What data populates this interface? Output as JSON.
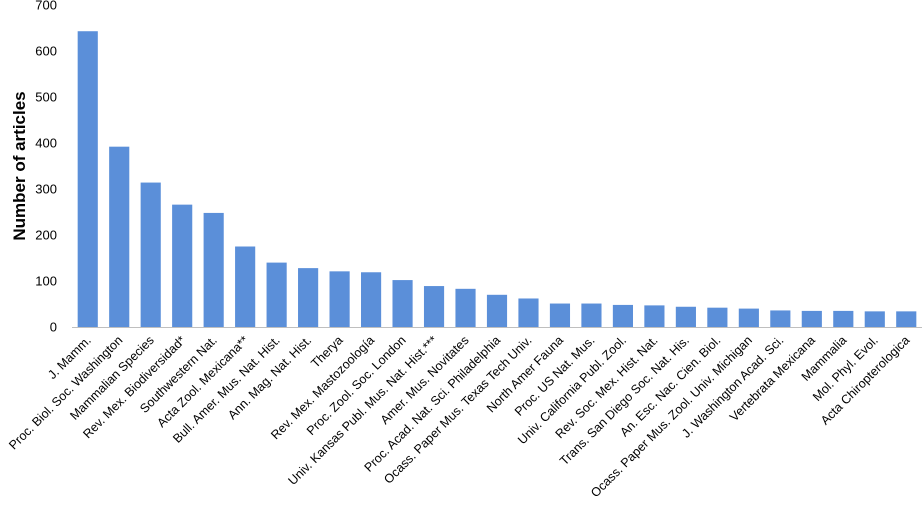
{
  "chart_data": {
    "type": "bar",
    "title": "",
    "xlabel": "",
    "ylabel": "Number of articles",
    "ylim": [
      0,
      700
    ],
    "yticks": [
      "0",
      "100",
      "200",
      "300",
      "400",
      "500",
      "600",
      "700"
    ],
    "grid": false,
    "legend": "none",
    "bar_color": "#5B8FD9",
    "categories": [
      "J. Mamm.",
      "Proc. Biol. Soc. Washington",
      "Mammalian Species",
      "Rev. Mex. Biodiversidad*",
      "Southwestern Nat.",
      "Acta Zool. Mexicana**",
      "Bull. Amer. Mus. Nat. Hist.",
      "Ann. Mag. Nat. Hist.",
      "Therya",
      "Rev. Mex. Mastozoología",
      "Proc. Zool. Soc. London",
      "Univ. Kansas Publ. Mus. Nat. Hist.***",
      "Amer. Mus. Novitates",
      "Proc. Acad. Nat. Sci. Philadelphia",
      "Ocass. Paper Mus. Texas Tech Univ.",
      "North Amer Fauna",
      "Proc. US Nat. Mus.",
      "Univ. California Publ. Zool.",
      "Rev. Soc. Mex. Hist. Nat.",
      "Trans. San Diego Soc. Nat. His.",
      "An. Esc. Nac. Cien. Biol.",
      "Ocass. Paper Mus. Zool. Univ. Michigan",
      "J. Washington Acad. Sci.",
      "Vertebrata Mexicana",
      "Mammalia",
      "Mol. Phyl. Evol.",
      "Acta Chiropterologica"
    ],
    "values": [
      643,
      392,
      314,
      266,
      248,
      175,
      140,
      128,
      121,
      119,
      102,
      89,
      83,
      70,
      62,
      51,
      51,
      48,
      47,
      44,
      42,
      40,
      36,
      35,
      35,
      34,
      34
    ]
  }
}
